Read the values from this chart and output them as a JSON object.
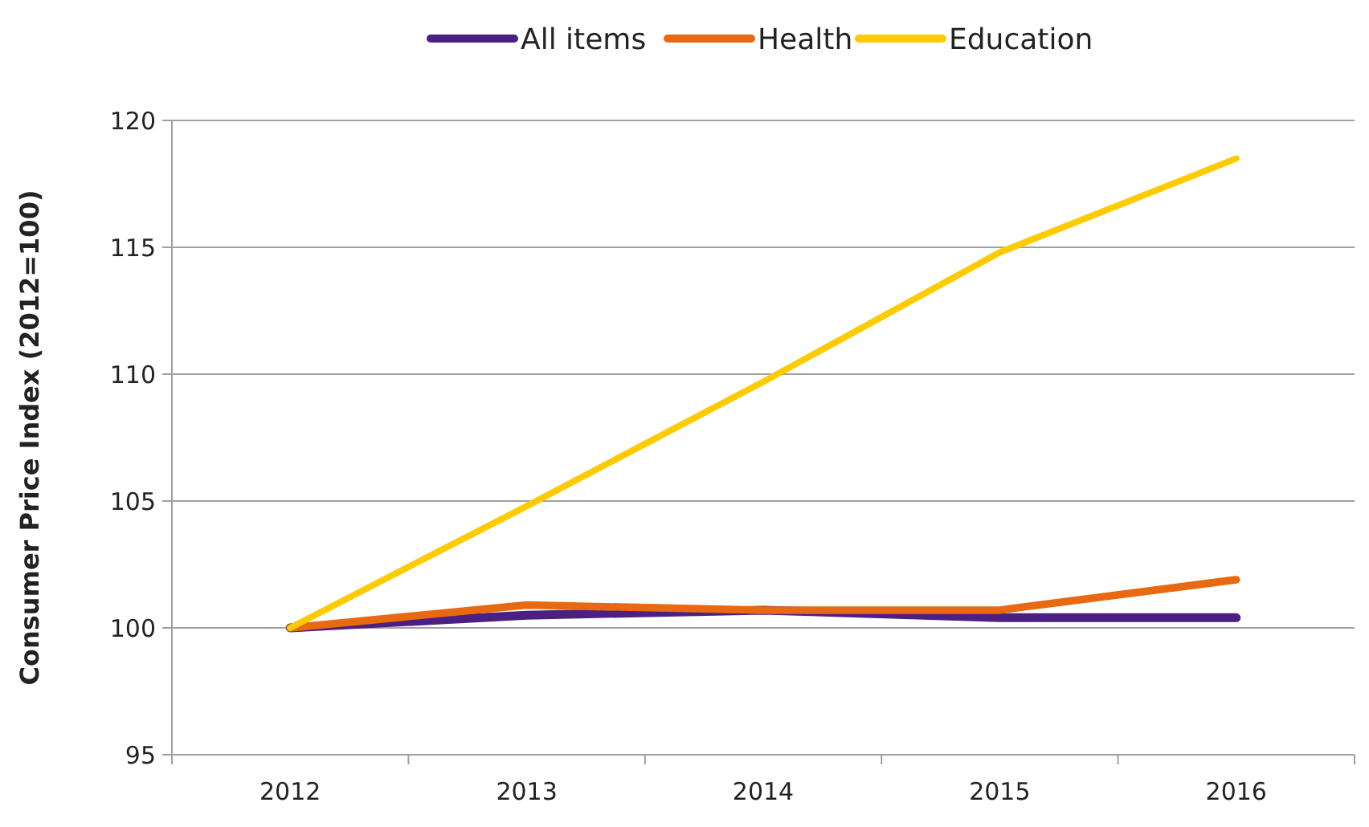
{
  "chart_data": {
    "type": "line",
    "ylabel": "Consumer Price Index (2012=100)",
    "categories": [
      "2012",
      "2013",
      "2014",
      "2015",
      "2016"
    ],
    "series": [
      {
        "name": "All items",
        "color": "#4b2083",
        "values": [
          100,
          100.5,
          100.7,
          100.4,
          100.4
        ]
      },
      {
        "name": "Health",
        "color": "#e8690f",
        "values": [
          100,
          100.9,
          100.7,
          100.7,
          101.9
        ]
      },
      {
        "name": "Education",
        "color": "#fecb00",
        "values": [
          100,
          104.8,
          109.7,
          114.8,
          118.5
        ]
      }
    ],
    "ylim": [
      95,
      120
    ],
    "yticks": [
      95,
      100,
      105,
      110,
      115,
      120
    ],
    "grid": "y",
    "legend": "top",
    "marker": "none",
    "line_style": "solid"
  }
}
